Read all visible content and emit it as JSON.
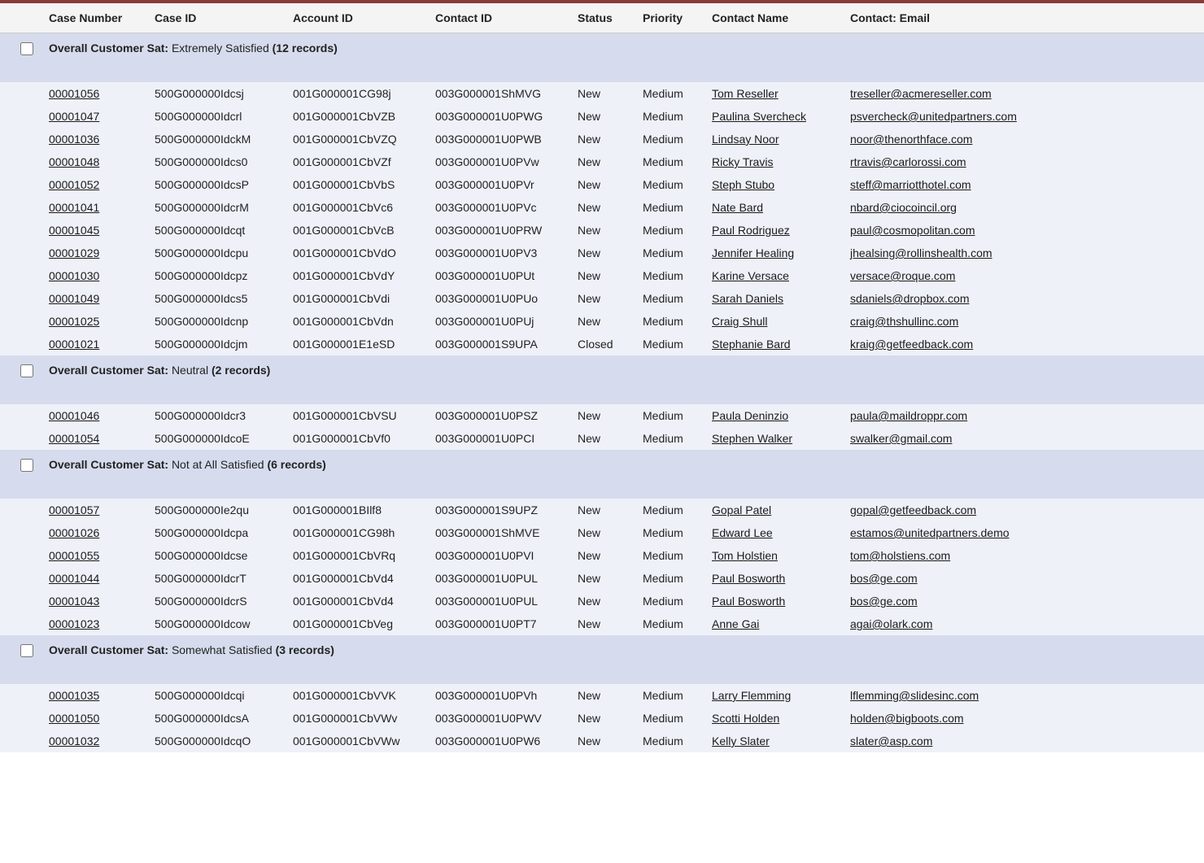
{
  "colors": {
    "top_border": "#8b3a3a",
    "header_bg": "#f4f4f4",
    "group_bg": "#d6dced",
    "row_bg": "#eef1f8",
    "link": "#1a1a1a"
  },
  "columns": [
    "Case Number",
    "Case ID",
    "Account ID",
    "Contact ID",
    "Status",
    "Priority",
    "Contact Name",
    "Contact: Email"
  ],
  "group_field_label": "Overall Customer Sat",
  "groups": [
    {
      "value": "Extremely Satisfied",
      "count_label": "(12 records)",
      "rows": [
        {
          "case_number": "00001056",
          "case_id": "500G000000Idcsj",
          "account_id": "001G000001CG98j",
          "contact_id": "003G000001ShMVG",
          "status": "New",
          "priority": "Medium",
          "contact_name": "Tom Reseller",
          "email": "treseller@acmereseller.com"
        },
        {
          "case_number": "00001047",
          "case_id": "500G000000Idcrl",
          "account_id": "001G000001CbVZB",
          "contact_id": "003G000001U0PWG",
          "status": "New",
          "priority": "Medium",
          "contact_name": "Paulina Svercheck",
          "email": "psvercheck@unitedpartners.com"
        },
        {
          "case_number": "00001036",
          "case_id": "500G000000IdckM",
          "account_id": "001G000001CbVZQ",
          "contact_id": "003G000001U0PWB",
          "status": "New",
          "priority": "Medium",
          "contact_name": "Lindsay Noor",
          "email": "noor@thenorthface.com"
        },
        {
          "case_number": "00001048",
          "case_id": "500G000000Idcs0",
          "account_id": "001G000001CbVZf",
          "contact_id": "003G000001U0PVw",
          "status": "New",
          "priority": "Medium",
          "contact_name": "Ricky Travis",
          "email": "rtravis@carlorossi.com"
        },
        {
          "case_number": "00001052",
          "case_id": "500G000000IdcsP",
          "account_id": "001G000001CbVbS",
          "contact_id": "003G000001U0PVr",
          "status": "New",
          "priority": "Medium",
          "contact_name": "Steph Stubo",
          "email": "steff@marriotthotel.com"
        },
        {
          "case_number": "00001041",
          "case_id": "500G000000IdcrM",
          "account_id": "001G000001CbVc6",
          "contact_id": "003G000001U0PVc",
          "status": "New",
          "priority": "Medium",
          "contact_name": "Nate Bard",
          "email": "nbard@ciocoincil.org"
        },
        {
          "case_number": "00001045",
          "case_id": "500G000000Idcqt",
          "account_id": "001G000001CbVcB",
          "contact_id": "003G000001U0PRW",
          "status": "New",
          "priority": "Medium",
          "contact_name": "Paul Rodriguez",
          "email": "paul@cosmopolitan.com"
        },
        {
          "case_number": "00001029",
          "case_id": "500G000000Idcpu",
          "account_id": "001G000001CbVdO",
          "contact_id": "003G000001U0PV3",
          "status": "New",
          "priority": "Medium",
          "contact_name": "Jennifer Healing",
          "email": "jhealsing@rollinshealth.com"
        },
        {
          "case_number": "00001030",
          "case_id": "500G000000Idcpz",
          "account_id": "001G000001CbVdY",
          "contact_id": "003G000001U0PUt",
          "status": "New",
          "priority": "Medium",
          "contact_name": "Karine Versace",
          "email": "versace@roque.com"
        },
        {
          "case_number": "00001049",
          "case_id": "500G000000Idcs5",
          "account_id": "001G000001CbVdi",
          "contact_id": "003G000001U0PUo",
          "status": "New",
          "priority": "Medium",
          "contact_name": "Sarah Daniels",
          "email": "sdaniels@dropbox.com"
        },
        {
          "case_number": "00001025",
          "case_id": "500G000000Idcnp",
          "account_id": "001G000001CbVdn",
          "contact_id": "003G000001U0PUj",
          "status": "New",
          "priority": "Medium",
          "contact_name": "Craig Shull",
          "email": "craig@thshullinc.com"
        },
        {
          "case_number": "00001021",
          "case_id": "500G000000Idcjm",
          "account_id": "001G000001E1eSD",
          "contact_id": "003G000001S9UPA",
          "status": "Closed",
          "priority": "Medium",
          "contact_name": "Stephanie Bard",
          "email": "kraig@getfeedback.com"
        }
      ]
    },
    {
      "value": "Neutral",
      "count_label": "(2 records)",
      "rows": [
        {
          "case_number": "00001046",
          "case_id": "500G000000Idcr3",
          "account_id": "001G000001CbVSU",
          "contact_id": "003G000001U0PSZ",
          "status": "New",
          "priority": "Medium",
          "contact_name": "Paula Deninzio",
          "email": "paula@maildroppr.com"
        },
        {
          "case_number": "00001054",
          "case_id": "500G000000IdcoE",
          "account_id": "001G000001CbVf0",
          "contact_id": "003G000001U0PCI",
          "status": "New",
          "priority": "Medium",
          "contact_name": "Stephen Walker",
          "email": "swalker@gmail.com"
        }
      ]
    },
    {
      "value": "Not at All Satisfied",
      "count_label": "(6 records)",
      "rows": [
        {
          "case_number": "00001057",
          "case_id": "500G000000Ie2qu",
          "account_id": "001G000001BIlf8",
          "contact_id": "003G000001S9UPZ",
          "status": "New",
          "priority": "Medium",
          "contact_name": "Gopal Patel",
          "email": "gopal@getfeedback.com"
        },
        {
          "case_number": "00001026",
          "case_id": "500G000000Idcpa",
          "account_id": "001G000001CG98h",
          "contact_id": "003G000001ShMVE",
          "status": "New",
          "priority": "Medium",
          "contact_name": "Edward Lee",
          "email": "estamos@unitedpartners.demo"
        },
        {
          "case_number": "00001055",
          "case_id": "500G000000Idcse",
          "account_id": "001G000001CbVRq",
          "contact_id": "003G000001U0PVI",
          "status": "New",
          "priority": "Medium",
          "contact_name": "Tom Holstien",
          "email": "tom@holstiens.com"
        },
        {
          "case_number": "00001044",
          "case_id": "500G000000IdcrT",
          "account_id": "001G000001CbVd4",
          "contact_id": "003G000001U0PUL",
          "status": "New",
          "priority": "Medium",
          "contact_name": "Paul Bosworth",
          "email": "bos@ge.com"
        },
        {
          "case_number": "00001043",
          "case_id": "500G000000IdcrS",
          "account_id": "001G000001CbVd4",
          "contact_id": "003G000001U0PUL",
          "status": "New",
          "priority": "Medium",
          "contact_name": "Paul Bosworth",
          "email": "bos@ge.com"
        },
        {
          "case_number": "00001023",
          "case_id": "500G000000Idcow",
          "account_id": "001G000001CbVeg",
          "contact_id": "003G000001U0PT7",
          "status": "New",
          "priority": "Medium",
          "contact_name": "Anne Gai",
          "email": "agai@olark.com"
        }
      ]
    },
    {
      "value": "Somewhat Satisfied",
      "count_label": "(3 records)",
      "rows": [
        {
          "case_number": "00001035",
          "case_id": "500G000000Idcqi",
          "account_id": "001G000001CbVVK",
          "contact_id": "003G000001U0PVh",
          "status": "New",
          "priority": "Medium",
          "contact_name": "Larry Flemming",
          "email": "lflemming@slidesinc.com"
        },
        {
          "case_number": "00001050",
          "case_id": "500G000000IdcsA",
          "account_id": "001G000001CbVWv",
          "contact_id": "003G000001U0PWV",
          "status": "New",
          "priority": "Medium",
          "contact_name": "Scotti Holden",
          "email": "holden@bigboots.com"
        },
        {
          "case_number": "00001032",
          "case_id": "500G000000IdcqO",
          "account_id": "001G000001CbVWw",
          "contact_id": "003G000001U0PW6",
          "status": "New",
          "priority": "Medium",
          "contact_name": "Kelly Slater",
          "email": "slater@asp.com"
        }
      ]
    }
  ]
}
